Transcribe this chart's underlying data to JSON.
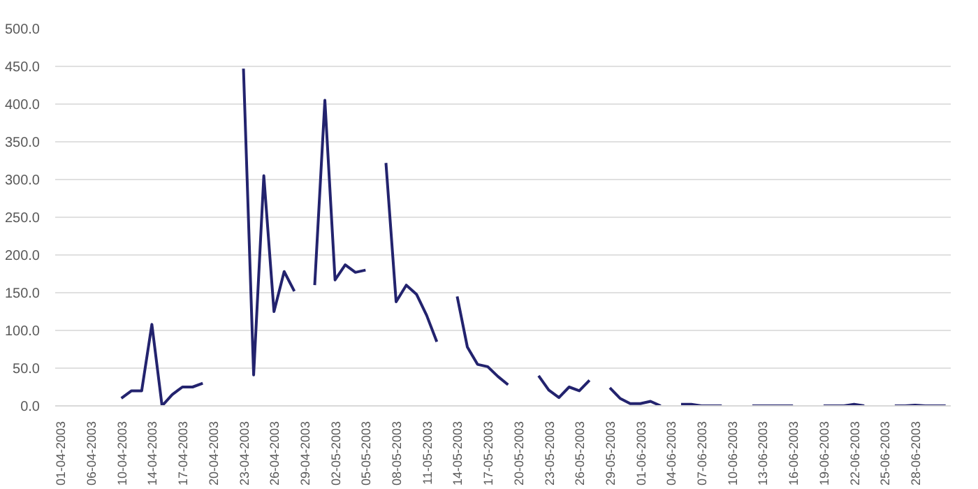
{
  "chart_data": {
    "type": "line",
    "categories": [
      "01-04-2003",
      null,
      null,
      "06-04-2003",
      null,
      null,
      "10-04-2003",
      null,
      null,
      "14-04-2003",
      null,
      null,
      "17-04-2003",
      null,
      null,
      "20-04-2003",
      null,
      null,
      "23-04-2003",
      null,
      null,
      "26-04-2003",
      null,
      null,
      "29-04-2003",
      null,
      null,
      "02-05-2003",
      null,
      null,
      "05-05-2003",
      null,
      null,
      "08-05-2003",
      null,
      null,
      "11-05-2003",
      null,
      null,
      "14-05-2003",
      null,
      null,
      "17-05-2003",
      null,
      null,
      "20-05-2003",
      null,
      null,
      "23-05-2003",
      null,
      null,
      "26-05-2003",
      null,
      null,
      "29-05-2003",
      null,
      null,
      "01-06-2003",
      null,
      null,
      "04-06-2003",
      null,
      null,
      "07-06-2003",
      null,
      null,
      "10-06-2003",
      null,
      null,
      "13-06-2003",
      null,
      null,
      "16-06-2003",
      null,
      null,
      "19-06-2003",
      null,
      null,
      "22-06-2003",
      null,
      null,
      "25-06-2003",
      null,
      null,
      "28-06-2003",
      null,
      null,
      null
    ],
    "series": [
      {
        "color": "#23236e",
        "values": [
          null,
          null,
          null,
          null,
          null,
          null,
          10,
          20,
          20,
          108,
          0,
          15,
          25,
          25,
          30,
          null,
          null,
          null,
          447,
          41,
          305,
          125,
          178,
          152,
          null,
          160,
          405,
          167,
          187,
          177,
          180,
          null,
          322,
          138,
          160,
          148,
          120,
          85,
          null,
          145,
          78,
          55,
          52,
          39,
          28,
          null,
          null,
          40,
          21,
          11,
          25,
          20,
          34,
          null,
          24,
          10,
          3,
          3,
          6,
          0,
          null,
          2,
          2,
          0,
          0,
          0,
          null,
          null,
          0,
          0,
          0,
          0,
          0,
          null,
          null,
          0,
          0,
          0,
          2,
          0,
          null,
          null,
          0,
          0,
          1,
          0,
          0,
          0
        ]
      }
    ],
    "ylim": [
      0,
      500
    ],
    "yticks": [
      {
        "value": 0,
        "label": "0.0"
      },
      {
        "value": 50,
        "label": "50.0"
      },
      {
        "value": 100,
        "label": "100.0"
      },
      {
        "value": 150,
        "label": "150.0"
      },
      {
        "value": 200,
        "label": "200.0"
      },
      {
        "value": 250,
        "label": "250.0"
      },
      {
        "value": 300,
        "label": "300.0"
      },
      {
        "value": 350,
        "label": "350.0"
      },
      {
        "value": 400,
        "label": "400.0"
      },
      {
        "value": 450,
        "label": "450.0"
      },
      {
        "value": 500,
        "label": "500.0"
      }
    ],
    "grid": "y",
    "marker": "none",
    "line_style": "solid"
  }
}
